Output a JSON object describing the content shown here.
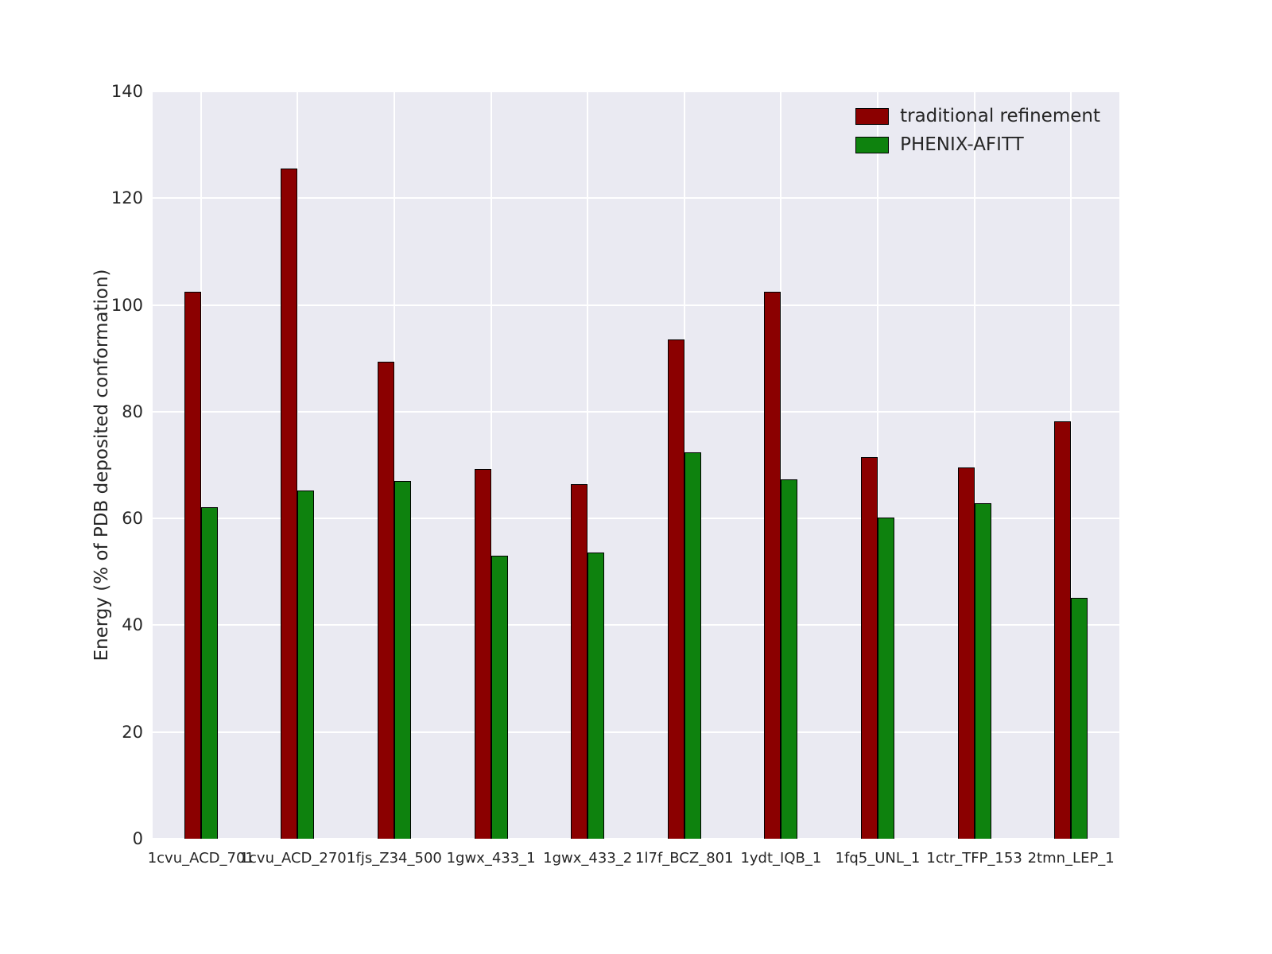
{
  "chart_data": {
    "type": "bar",
    "title": "",
    "xlabel": "",
    "ylabel": "Energy (% of PDB deposited conformation)",
    "ylim": [
      0,
      140
    ],
    "yticks": [
      0,
      20,
      40,
      60,
      80,
      100,
      120,
      140
    ],
    "grid": "on",
    "legend_position": "upper right",
    "plot_background": "#eaeaf2",
    "grid_color": "#ffffff",
    "categories": [
      "1cvu_ACD_701",
      "1cvu_ACD_2701",
      "1fjs_Z34_500",
      "1gwx_433_1",
      "1gwx_433_2",
      "1l7f_BCZ_801",
      "1ydt_IQB_1",
      "1fq5_UNL_1",
      "1ctr_TFP_153",
      "2tmn_LEP_1"
    ],
    "series": [
      {
        "name": "traditional refinement",
        "color": "#8b0000",
        "values": [
          102.5,
          125.5,
          89.3,
          69.2,
          66.5,
          93.5,
          102.5,
          71.5,
          69.5,
          78.2
        ]
      },
      {
        "name": "PHENIX-AFITT",
        "color": "#0e820e",
        "values": [
          62.1,
          65.2,
          67.0,
          53.0,
          53.6,
          72.4,
          67.3,
          60.2,
          62.9,
          45.2
        ]
      }
    ]
  }
}
